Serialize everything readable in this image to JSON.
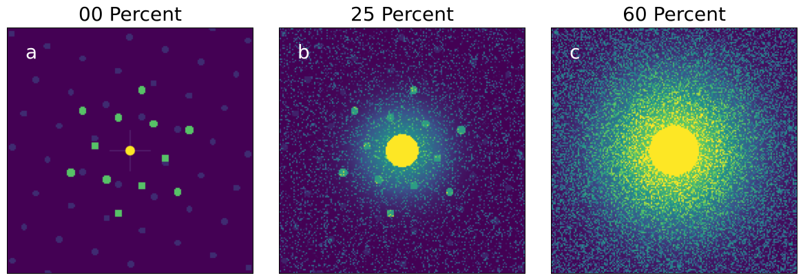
{
  "panels": [
    {
      "title": "00 Percent",
      "label": "a",
      "noise_level": 0.0
    },
    {
      "title": "25 Percent",
      "label": "b",
      "noise_level": 0.25
    },
    {
      "title": "60 Percent",
      "label": "c",
      "noise_level": 0.6
    }
  ],
  "colormap": {
    "background": "#440154",
    "low": "#3b528b",
    "mid": "#21918c",
    "high": "#5ec962",
    "peak": "#fde725"
  }
}
